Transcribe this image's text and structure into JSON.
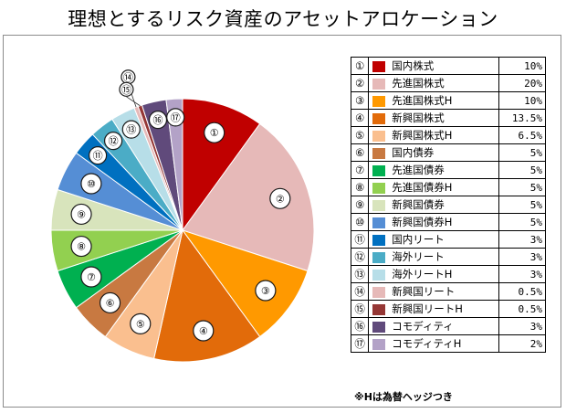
{
  "chart_data": {
    "type": "pie",
    "title": "理想とするリスク資産のアセットアロケーション",
    "note": "※Hは為替ヘッジつき",
    "slices": [
      {
        "num": "①",
        "name": "国内株式",
        "value": 10,
        "label": "10%",
        "color": "#c00000"
      },
      {
        "num": "②",
        "name": "先進国株式",
        "value": 20,
        "label": "20%",
        "color": "#e6b9b8"
      },
      {
        "num": "③",
        "name": "先進国株式H",
        "value": 10,
        "label": "10%",
        "color": "#ff9900"
      },
      {
        "num": "④",
        "name": "新興国株式",
        "value": 13.5,
        "label": "13.5%",
        "color": "#e26b0a"
      },
      {
        "num": "⑤",
        "name": "新興国株式H",
        "value": 6.5,
        "label": "6.5%",
        "color": "#fabf8f"
      },
      {
        "num": "⑥",
        "name": "国内債券",
        "value": 5,
        "label": "5%",
        "color": "#c87941"
      },
      {
        "num": "⑦",
        "name": "先進国債券",
        "value": 5,
        "label": "5%",
        "color": "#00b050"
      },
      {
        "num": "⑧",
        "name": "先進国債券H",
        "value": 5,
        "label": "5%",
        "color": "#92d050"
      },
      {
        "num": "⑨",
        "name": "新興国債券",
        "value": 5,
        "label": "5%",
        "color": "#d8e4bc"
      },
      {
        "num": "⑩",
        "name": "新興国債券H",
        "value": 5,
        "label": "5%",
        "color": "#558ed5"
      },
      {
        "num": "⑪",
        "name": "国内リート",
        "value": 3,
        "label": "3%",
        "color": "#0070c0"
      },
      {
        "num": "⑫",
        "name": "海外リート",
        "value": 3,
        "label": "3%",
        "color": "#4bacc6"
      },
      {
        "num": "⑬",
        "name": "海外リートH",
        "value": 3,
        "label": "3%",
        "color": "#b7dee8"
      },
      {
        "num": "⑭",
        "name": "新興国リート",
        "value": 0.5,
        "label": "0.5%",
        "color": "#e6b9b8"
      },
      {
        "num": "⑮",
        "name": "新興国リートH",
        "value": 0.5,
        "label": "0.5%",
        "color": "#953735"
      },
      {
        "num": "⑯",
        "name": "コモディティ",
        "value": 3,
        "label": "3%",
        "color": "#604a7b"
      },
      {
        "num": "⑰",
        "name": "コモディティH",
        "value": 2,
        "label": "2%",
        "color": "#b3a2c7"
      }
    ]
  }
}
